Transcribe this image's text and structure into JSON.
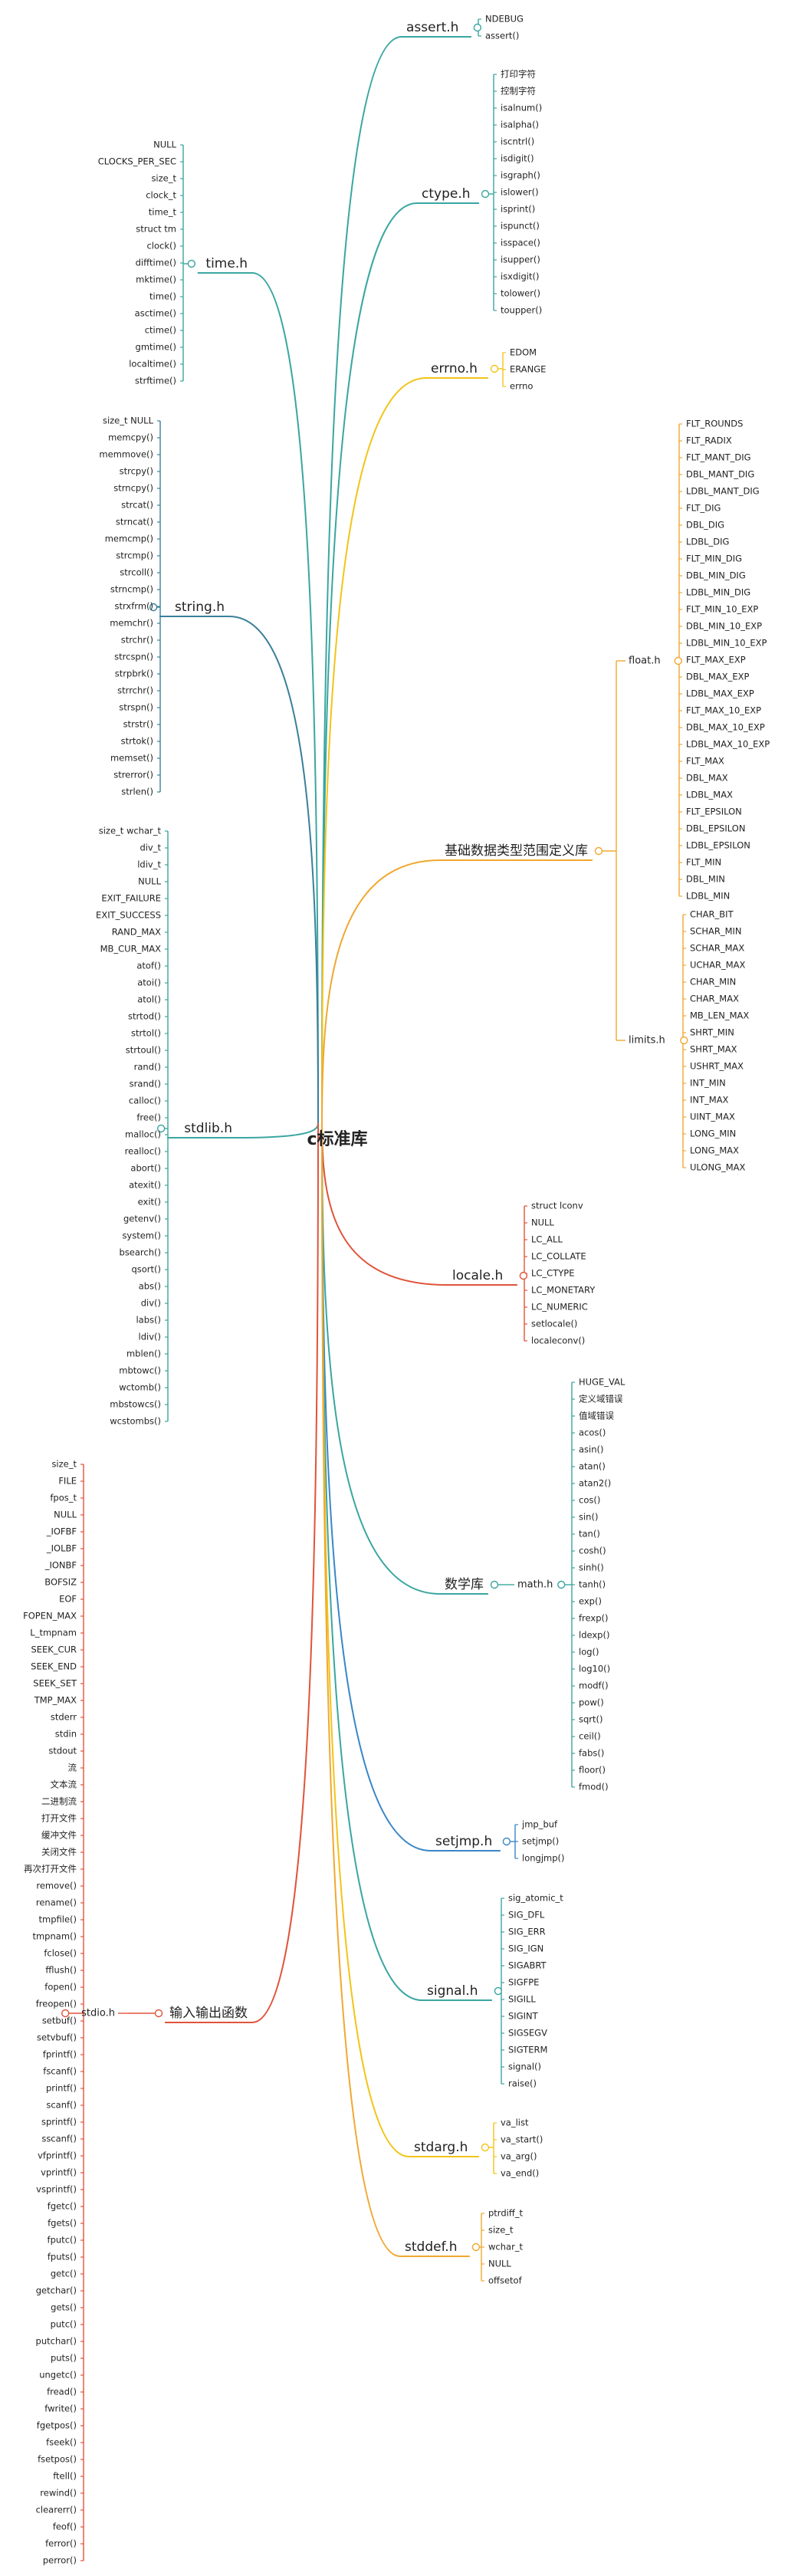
{
  "root": "c标准库",
  "branches": [
    {
      "id": "assert",
      "label": "assert.h",
      "color": "#3aa6a0",
      "side": "right",
      "children": [
        "NDEBUG",
        "assert()"
      ]
    },
    {
      "id": "ctype",
      "label": "ctype.h",
      "color": "#3aa6a0",
      "side": "right",
      "children": [
        "打印字符",
        "控制字符",
        "isalnum()",
        "isalpha()",
        "iscntrl()",
        "isdigit()",
        "isgraph()",
        "islower()",
        "isprint()",
        "ispunct()",
        "isspace()",
        "isupper()",
        "isxdigit()",
        "tolower()",
        "toupper()"
      ]
    },
    {
      "id": "errno",
      "label": "errno.h",
      "color": "#f2c419",
      "side": "right",
      "children": [
        "EDOM",
        "ERANGE",
        "errno"
      ]
    },
    {
      "id": "limits_root",
      "label": "基础数据类型范围定义库",
      "color": "#f0a830",
      "side": "right",
      "subs": [
        {
          "id": "float",
          "label": "float.h",
          "children": [
            "FLT_ROUNDS",
            "FLT_RADIX",
            "FLT_MANT_DIG",
            "DBL_MANT_DIG",
            "LDBL_MANT_DIG",
            "FLT_DIG",
            "DBL_DIG",
            "LDBL_DIG",
            "FLT_MIN_DIG",
            "DBL_MIN_DIG",
            "LDBL_MIN_DIG",
            "FLT_MIN_10_EXP",
            "DBL_MIN_10_EXP",
            "LDBL_MIN_10_EXP",
            "FLT_MAX_EXP",
            "DBL_MAX_EXP",
            "LDBL_MAX_EXP",
            "FLT_MAX_10_EXP",
            "DBL_MAX_10_EXP",
            "LDBL_MAX_10_EXP",
            "FLT_MAX",
            "DBL_MAX",
            "LDBL_MAX",
            "FLT_EPSILON",
            "DBL_EPSILON",
            "LDBL_EPSILON",
            "FLT_MIN",
            "DBL_MIN",
            "LDBL_MIN"
          ]
        },
        {
          "id": "limits",
          "label": "limits.h",
          "children": [
            "CHAR_BIT",
            "SCHAR_MIN",
            "SCHAR_MAX",
            "UCHAR_MAX",
            "CHAR_MIN",
            "CHAR_MAX",
            "MB_LEN_MAX",
            "SHRT_MIN",
            "SHRT_MAX",
            "USHRT_MAX",
            "INT_MIN",
            "INT_MAX",
            "UINT_MAX",
            "LONG_MIN",
            "LONG_MAX",
            "ULONG_MAX"
          ]
        }
      ]
    },
    {
      "id": "locale",
      "label": "locale.h",
      "color": "#e0533a",
      "side": "right",
      "children": [
        "struct  lconv",
        "NULL",
        "LC_ALL",
        "LC_COLLATE",
        "LC_CTYPE",
        "LC_MONETARY",
        "LC_NUMERIC",
        "setlocale()",
        "localeconv()"
      ]
    },
    {
      "id": "math_root",
      "label": "数学库",
      "color": "#3aa6a0",
      "side": "right",
      "subs": [
        {
          "id": "math",
          "label": "math.h",
          "children": [
            "HUGE_VAL",
            "定义域错误",
            "值域错误",
            "acos()",
            "asin()",
            "atan()",
            "atan2()",
            "cos()",
            "sin()",
            "tan()",
            "cosh()",
            "sinh()",
            "tanh()",
            "exp()",
            "frexp()",
            "ldexp()",
            "log()",
            "log10()",
            "modf()",
            "pow()",
            "sqrt()",
            "ceil()",
            "fabs()",
            "floor()",
            "fmod()"
          ]
        }
      ]
    },
    {
      "id": "setjmp",
      "label": "setjmp.h",
      "color": "#3a86c8",
      "side": "right",
      "children": [
        "jmp_buf",
        "setjmp()",
        "longjmp()"
      ]
    },
    {
      "id": "signal",
      "label": "signal.h",
      "color": "#3aa6a0",
      "side": "right",
      "children": [
        "sig_atomic_t",
        "SIG_DFL",
        "SIG_ERR",
        "SIG_IGN",
        "SIGABRT",
        "SIGFPE",
        "SIGILL",
        "SIGINT",
        "SIGSEGV",
        "SIGTERM",
        "signal()",
        "raise()"
      ]
    },
    {
      "id": "stdarg",
      "label": "stdarg.h",
      "color": "#f2c419",
      "side": "right",
      "children": [
        "va_list",
        "va_start()",
        "va_arg()",
        "va_end()"
      ]
    },
    {
      "id": "stddef",
      "label": "stddef.h",
      "color": "#f0a830",
      "side": "right",
      "children": [
        "ptrdiff_t",
        "size_t",
        "wchar_t",
        "NULL",
        "offsetof"
      ]
    },
    {
      "id": "time",
      "label": "time.h",
      "color": "#3aa6a0",
      "side": "left",
      "children": [
        "NULL",
        "CLOCKS_PER_SEC",
        "size_t",
        "clock_t",
        "time_t",
        "struct   tm",
        "clock()",
        "difftime()",
        "mktime()",
        "time()",
        "asctime()",
        "ctime()",
        "gmtime()",
        "localtime()",
        "strftime()"
      ]
    },
    {
      "id": "string",
      "label": "string.h",
      "color": "#3a7f9a",
      "side": "left",
      "children": [
        "size_t  NULL",
        "memcpy()",
        "memmove()",
        "strcpy()",
        "strncpy()",
        "strcat()",
        "strncat()",
        "memcmp()",
        "strcmp()",
        "strcoll()",
        "strncmp()",
        "strxfrm()",
        "memchr()",
        "strchr()",
        "strcspn()",
        "strpbrk()",
        "strrchr()",
        "strspn()",
        "strstr()",
        "strtok()",
        "memset()",
        "strerror()",
        "strlen()"
      ]
    },
    {
      "id": "stdlib",
      "label": "stdlib.h",
      "color": "#3aa6a0",
      "side": "left",
      "children": [
        "size_t  wchar_t",
        "div_t",
        "ldiv_t",
        "NULL",
        "EXIT_FAILURE",
        "EXIT_SUCCESS",
        "RAND_MAX",
        "MB_CUR_MAX",
        "atof()",
        "atoi()",
        "atol()",
        "strtod()",
        "strtol()",
        "strtoul()",
        "rand()",
        "srand()",
        "calloc()",
        "free()",
        "malloc()",
        "realloc()",
        "abort()",
        "atexit()",
        "exit()",
        "getenv()",
        "system()",
        "bsearch()",
        "qsort()",
        "abs()",
        "div()",
        "labs()",
        "ldiv()",
        "mblen()",
        "mbtowc()",
        "wctomb()",
        "mbstowcs()",
        "wcstombs()"
      ]
    },
    {
      "id": "stdio_root",
      "label": "输入输出函数",
      "color": "#e0533a",
      "side": "left",
      "subs": [
        {
          "id": "stdio",
          "label": "stdio.h",
          "children": [
            "size_t",
            "FILE",
            "fpos_t",
            "NULL",
            "_IOFBF",
            "_IOLBF",
            "_IONBF",
            "BOFSIZ",
            "EOF",
            "FOPEN_MAX",
            "L_tmpnam",
            "SEEK_CUR",
            "SEEK_END",
            "SEEK_SET",
            "TMP_MAX",
            "stderr",
            "stdin",
            "stdout",
            "流",
            "文本流",
            "二进制流",
            "打开文件",
            "缓冲文件",
            "关闭文件",
            "再次打开文件",
            "remove()",
            "rename()",
            "tmpfile()",
            "tmpnam()",
            "fclose()",
            "fflush()",
            "fopen()",
            "freopen()",
            "setbuf()",
            "setvbuf()",
            "fprintf()",
            "fscanf()",
            "printf()",
            "scanf()",
            "sprintf()",
            "sscanf()",
            "vfprintf()",
            "vprintf()",
            "vsprintf()",
            "fgetc()",
            "fgets()",
            "fputc()",
            "fputs()",
            "getc()",
            "getchar()",
            "gets()",
            "putc()",
            "putchar()",
            "puts()",
            "ungetc()",
            "fread()",
            "fwrite()",
            "fgetpos()",
            "fseek()",
            "fsetpos()",
            "ftell()",
            "rewind()",
            "clearerr()",
            "feof()",
            "ferror()",
            "perror()"
          ]
        }
      ]
    }
  ]
}
